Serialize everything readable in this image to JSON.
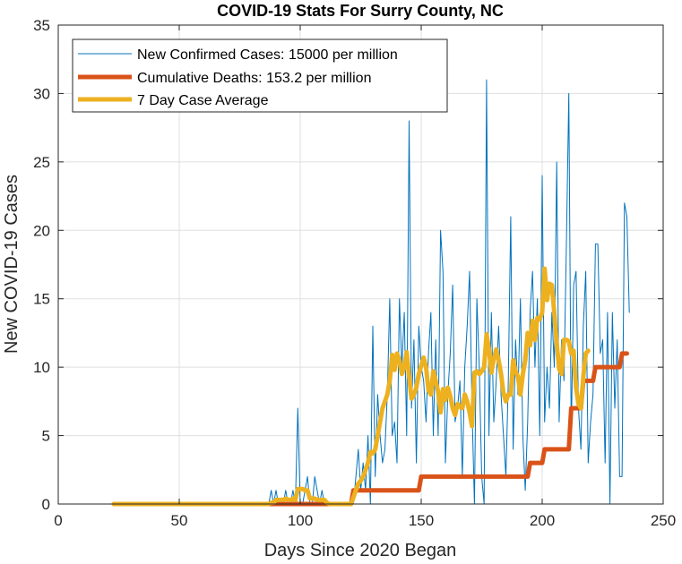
{
  "chart_data": {
    "type": "line",
    "title": "COVID-19 Stats For Surry County, NC",
    "xlabel": "Days Since 2020 Began",
    "ylabel": "New COVID-19 Cases",
    "xlim": [
      0,
      250
    ],
    "ylim": [
      0,
      35
    ],
    "xticks": [
      0,
      50,
      100,
      150,
      200,
      250
    ],
    "yticks": [
      0,
      5,
      10,
      15,
      20,
      25,
      30,
      35
    ],
    "grid": true,
    "legend_position": "top-left",
    "series": [
      {
        "name": "New Confirmed Cases: 15000 per million",
        "color": "#0072BD",
        "x_start": 23,
        "values": [
          0,
          0,
          0,
          0,
          0,
          0,
          0,
          0,
          0,
          0,
          0,
          0,
          0,
          0,
          0,
          0,
          0,
          0,
          0,
          0,
          0,
          0,
          0,
          0,
          0,
          0,
          0,
          0,
          0,
          0,
          0,
          0,
          0,
          0,
          0,
          0,
          0,
          0,
          0,
          0,
          0,
          0,
          0,
          0,
          0,
          0,
          0,
          0,
          0,
          0,
          0,
          0,
          0,
          0,
          0,
          0,
          0,
          0,
          0,
          0,
          0,
          0,
          0,
          0,
          0,
          1,
          0,
          1,
          0,
          0,
          0,
          1,
          0,
          0,
          1,
          0,
          7,
          0,
          0,
          1,
          2,
          0,
          0,
          2,
          1,
          0,
          1,
          0,
          0,
          0,
          0,
          0,
          0,
          0,
          0,
          0,
          0,
          0,
          0,
          0,
          2,
          4,
          1,
          3,
          1,
          5,
          0,
          13,
          2,
          8,
          5,
          3,
          4,
          8,
          15,
          5,
          6,
          3,
          15,
          10,
          14,
          5,
          28,
          7,
          12,
          3,
          13,
          10,
          9,
          6,
          11,
          14,
          5,
          12,
          5,
          20,
          17,
          3,
          8,
          11,
          16,
          6,
          7,
          9,
          2,
          10,
          13,
          17,
          7,
          0,
          15,
          10,
          2,
          0,
          31,
          5,
          14,
          6,
          9,
          13,
          8,
          5,
          2,
          9,
          21,
          4,
          12,
          8,
          15,
          5,
          1,
          6,
          14,
          17,
          10,
          15,
          5,
          24,
          6,
          10,
          7,
          14,
          10,
          25,
          6,
          12,
          9,
          19,
          30,
          5,
          16,
          17,
          7,
          4,
          13,
          17,
          3,
          6,
          8,
          19,
          19,
          11,
          12,
          3,
          14,
          0,
          14,
          7,
          12,
          2,
          2,
          22,
          21,
          14
        ]
      },
      {
        "name": "Cumulative Deaths: 153.2 per million",
        "color": "#D95319",
        "x_start": 23,
        "values": [
          0,
          0,
          0,
          0,
          0,
          0,
          0,
          0,
          0,
          0,
          0,
          0,
          0,
          0,
          0,
          0,
          0,
          0,
          0,
          0,
          0,
          0,
          0,
          0,
          0,
          0,
          0,
          0,
          0,
          0,
          0,
          0,
          0,
          0,
          0,
          0,
          0,
          0,
          0,
          0,
          0,
          0,
          0,
          0,
          0,
          0,
          0,
          0,
          0,
          0,
          0,
          0,
          0,
          0,
          0,
          0,
          0,
          0,
          0,
          0,
          0,
          0,
          0,
          0,
          0,
          0,
          0,
          0,
          0,
          0,
          0,
          0,
          0,
          0,
          0,
          0,
          0,
          0,
          0,
          0,
          0,
          0,
          0,
          0,
          0,
          0,
          0,
          0,
          0,
          0,
          0,
          0,
          0,
          0,
          0,
          0,
          0,
          0,
          0,
          1,
          1,
          1,
          1,
          1,
          1,
          1,
          1,
          1,
          1,
          1,
          1,
          1,
          1,
          1,
          1,
          1,
          1,
          1,
          1,
          1,
          1,
          1,
          1,
          1,
          1,
          1,
          1,
          2,
          2,
          2,
          2,
          2,
          2,
          2,
          2,
          2,
          2,
          2,
          2,
          2,
          2,
          2,
          2,
          2,
          2,
          2,
          2,
          2,
          2,
          2,
          2,
          2,
          2,
          2,
          2,
          2,
          2,
          2,
          2,
          2,
          2,
          2,
          2,
          2,
          2,
          2,
          2,
          2,
          2,
          2,
          2,
          2,
          3,
          3,
          3,
          3,
          3,
          3,
          4,
          4,
          4,
          4,
          4,
          4,
          4,
          4,
          4,
          4,
          4,
          7,
          7,
          7,
          7,
          7,
          9,
          9,
          9,
          9,
          9,
          10,
          10,
          10,
          10,
          10,
          10,
          10,
          10,
          10,
          10,
          10,
          11,
          11,
          11
        ]
      },
      {
        "name": "7 Day Case Average",
        "color": "#EDB120",
        "x_start": 23,
        "values": [
          0,
          0,
          0,
          0,
          0,
          0,
          0,
          0,
          0,
          0,
          0,
          0,
          0,
          0,
          0,
          0,
          0,
          0,
          0,
          0,
          0,
          0,
          0,
          0,
          0,
          0,
          0,
          0,
          0,
          0,
          0,
          0,
          0,
          0,
          0,
          0,
          0,
          0,
          0,
          0,
          0,
          0,
          0,
          0,
          0,
          0,
          0,
          0,
          0,
          0,
          0,
          0,
          0,
          0,
          0,
          0,
          0,
          0,
          0,
          0,
          0,
          0,
          0,
          0,
          0,
          0.1,
          0.1,
          0.3,
          0.3,
          0.3,
          0.3,
          0.4,
          0.3,
          0.3,
          0.4,
          0.3,
          1.1,
          1.1,
          1.1,
          1.0,
          1.0,
          0.4,
          0.4,
          0.4,
          0.3,
          0.3,
          0.3,
          0.3,
          0.1,
          0.0,
          0.0,
          0.0,
          0.0,
          0.0,
          0.0,
          0.0,
          0.0,
          0.0,
          0.0,
          0.5,
          1.0,
          1.5,
          1.7,
          2.0,
          2.5,
          3.0,
          3.8,
          3.7,
          4.0,
          5.0,
          6.0,
          7.0,
          7.5,
          8.0,
          9.0,
          10.9,
          9.8,
          11.0,
          10.5,
          9.5,
          10.0,
          11.1,
          9.3,
          7.7,
          8.0,
          8.5,
          9.5,
          10.1,
          10.7,
          10.0,
          8.3,
          8.0,
          9.7,
          9.0,
          8.2,
          6.7,
          8.4,
          7.6,
          8.5,
          7.9,
          7.0,
          6.5,
          7.3,
          7.1,
          7.0,
          8.0,
          7.5,
          6.7,
          5.7,
          9.6,
          9.7,
          9.5,
          9.7,
          10.0,
          12.4,
          11.3,
          9.6,
          10.6,
          11.3,
          10.5,
          9.5,
          8.1,
          7.5,
          8.0,
          8.0,
          10.5,
          9.7,
          9.3,
          8.0,
          9.5,
          10.5,
          12.5,
          11.6,
          13.4,
          12.0,
          13.6,
          13.5,
          14.0,
          17.2,
          14.9,
          16.1,
          16.0,
          14.0,
          11.7,
          9.9,
          9.5,
          12.0,
          12.0,
          11.9,
          11.0,
          11.2,
          8.5,
          7.3,
          7.0,
          9.3,
          11.0,
          11.2
        ]
      }
    ]
  }
}
